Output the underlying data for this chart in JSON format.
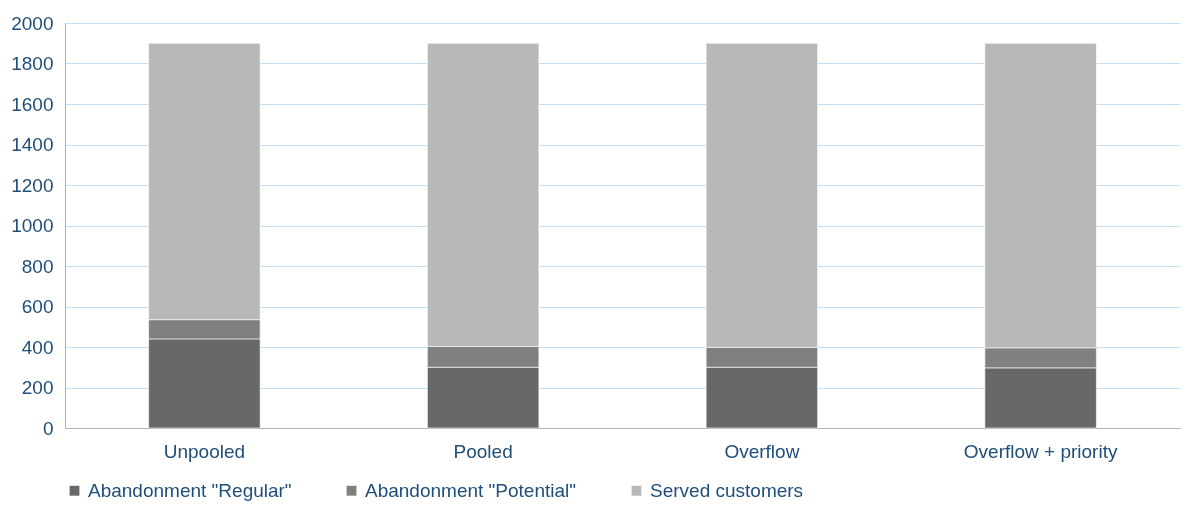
{
  "chart_data": {
    "type": "bar",
    "stacked": true,
    "categories": [
      "Unpooled",
      "Pooled",
      "Overflow",
      "Overflow + priority"
    ],
    "series": [
      {
        "name": "Abandonment \"Regular\"",
        "color": "#686868",
        "values": [
          440,
          300,
          300,
          297
        ]
      },
      {
        "name": "Abandonment \"Potential\"",
        "color": "#808080",
        "values": [
          95,
          103,
          98,
          99
        ]
      },
      {
        "name": "Served customers",
        "color": "#b8b8b8",
        "values": [
          1365,
          1497,
          1502,
          1504
        ]
      }
    ],
    "ylim": [
      0,
      2000
    ],
    "yticks": [
      0,
      200,
      400,
      600,
      800,
      1000,
      1200,
      1400,
      1600,
      1800,
      2000
    ],
    "grid": "y",
    "legend": "bottom"
  }
}
